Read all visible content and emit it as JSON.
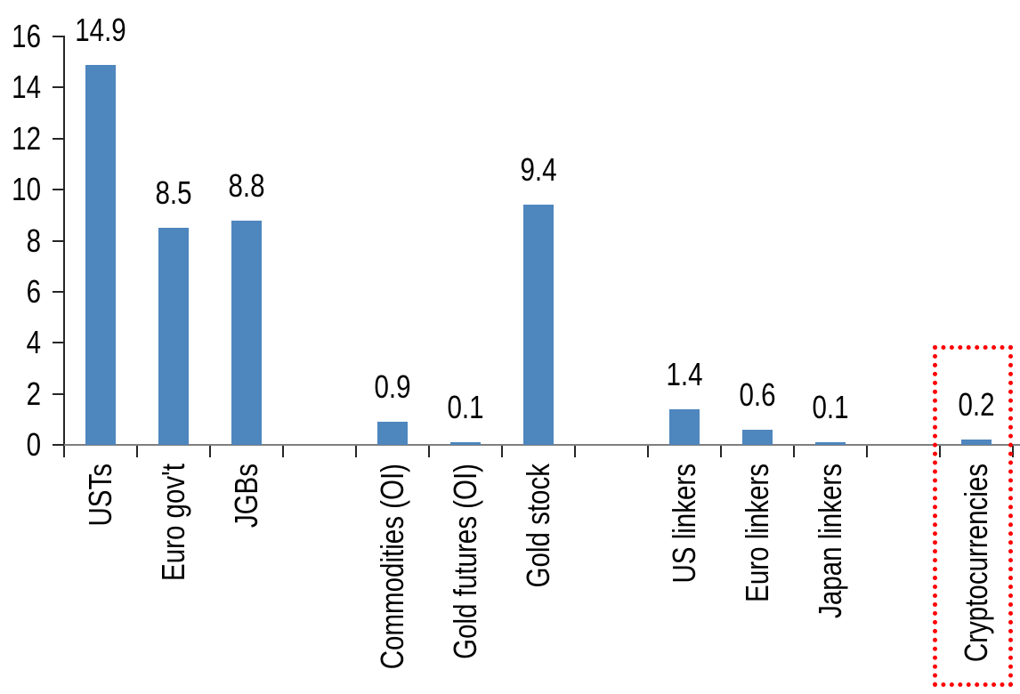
{
  "chart_data": {
    "type": "bar",
    "title": "",
    "xlabel": "",
    "ylabel": "",
    "categories": [
      "USTs",
      "Euro gov't",
      "JGBs",
      "Commodities (OI)",
      "Gold futures (OI)",
      "Gold stock",
      "US linkers",
      "Euro linkers",
      "Japan linkers",
      "Cryptocurrencies"
    ],
    "values": [
      14.9,
      8.5,
      8.8,
      0.9,
      0.1,
      9.4,
      1.4,
      0.6,
      0.1,
      0.2
    ],
    "data_labels": [
      "14.9",
      "8.5",
      "8.8",
      "0.9",
      "0.1",
      "9.4",
      "1.4",
      "0.6",
      "0.1",
      "0.2"
    ],
    "slots": [
      0,
      1,
      2,
      4,
      5,
      6,
      8,
      9,
      10,
      12
    ],
    "total_slots": 13,
    "ylim": [
      0,
      16
    ],
    "yticks": [
      0,
      2,
      4,
      6,
      8,
      10,
      12,
      14,
      16
    ],
    "grid": false,
    "legend": "none",
    "bar_color": "#4E86BE",
    "x_axis_color": "#7F7F7F",
    "y_axis_color": "#262626",
    "tick_color": "#262626",
    "text_color": "#000000",
    "highlight": {
      "category": "Cryptocurrencies",
      "style": "dotted-box",
      "color": "#FF0000"
    }
  }
}
